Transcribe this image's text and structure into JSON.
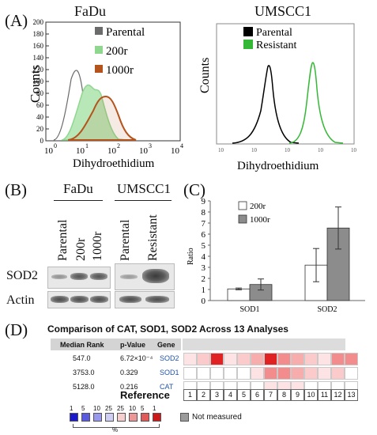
{
  "panels": {
    "a": "(A)",
    "b": "(B)",
    "c": "(C)",
    "d": "(D)"
  },
  "fadu_hist": {
    "title": "FaDu",
    "ylabel": "Counts",
    "xlabel": "Dihydroethidium",
    "yticks": [
      "0",
      "20",
      "40",
      "60",
      "80",
      "100",
      "120",
      "140",
      "160",
      "180",
      "200"
    ],
    "xticks": [
      "10",
      "10",
      "10",
      "10",
      "10"
    ],
    "xexps": [
      "0",
      "1",
      "2",
      "3",
      "4"
    ],
    "legend": [
      {
        "label": "Parental",
        "color": "#6b6b6b"
      },
      {
        "label": "200r",
        "color": "#8fd68f"
      },
      {
        "label": "1000r",
        "color": "#b5531d"
      }
    ]
  },
  "umscc_hist": {
    "title": "UMSCC1",
    "ylabel": "Counts",
    "xlabel": "Dihydroethidium",
    "legend": [
      {
        "label": "Parental",
        "color": "#000000"
      },
      {
        "label": "Resistant",
        "color": "#35b835"
      }
    ]
  },
  "western": {
    "group1": "FaDu",
    "group2": "UMSCC1",
    "lanes1": [
      "Parental",
      "200r",
      "1000r"
    ],
    "lanes2": [
      "Parental",
      "Resistant"
    ],
    "rows": [
      "SOD2",
      "Actin"
    ]
  },
  "chart_data": {
    "type": "bar",
    "categories": [
      "SOD1",
      "SOD2"
    ],
    "series": [
      {
        "name": "200r",
        "values": [
          1.05,
          3.2
        ],
        "errors": [
          0.08,
          1.5
        ],
        "color": "#ffffff"
      },
      {
        "name": "1000r",
        "values": [
          1.45,
          6.55
        ],
        "errors": [
          0.5,
          1.9
        ],
        "color": "#8c8c8c"
      }
    ],
    "ylabel": "Ratio",
    "yticks": [
      "0",
      "1",
      "2",
      "3",
      "4",
      "5",
      "6",
      "7",
      "8",
      "9"
    ],
    "ylim": [
      0,
      9
    ]
  },
  "oncomine": {
    "title": "Comparison of CAT, SOD1, SOD2 Across 13 Analyses",
    "headers": {
      "rank": "Median Rank",
      "pval": "p-Value",
      "gene": "Gene"
    },
    "rows": [
      {
        "rank": "547.0",
        "pval": "6.72×10⁻⁴",
        "gene": "SOD2",
        "cells": [
          1,
          2,
          6,
          1,
          2,
          3,
          6,
          4,
          3,
          2,
          1,
          4,
          4
        ]
      },
      {
        "rank": "3753.0",
        "pval": "0.329",
        "gene": "SOD1",
        "cells": [
          0,
          0,
          0,
          0,
          0,
          1,
          4,
          4,
          3,
          2,
          1,
          2,
          0
        ]
      },
      {
        "rank": "5128.0",
        "pval": "0.216",
        "gene": "CAT",
        "cells": [
          0,
          0,
          0,
          0,
          0,
          0,
          1,
          1,
          1,
          0,
          0,
          0,
          0
        ]
      }
    ],
    "reference_label": "Reference",
    "reference_numbers": [
      "1",
      "2",
      "3",
      "4",
      "5",
      "6",
      "7",
      "8",
      "9",
      "10",
      "11",
      "12",
      "13"
    ],
    "scale_top": [
      "1",
      "5",
      "10",
      "25",
      "25",
      "10",
      "5",
      "1"
    ],
    "scale_unit": "%",
    "not_measured": "Not measured",
    "heat_colors": [
      "#ffffff",
      "#fde3e3",
      "#fbcaca",
      "#f8adad",
      "#f38c8c",
      "#ee5c5c",
      "#e02222"
    ],
    "scale_colors": [
      "#1a1acc",
      "#5a5ae0",
      "#9898ec",
      "#cfcff6",
      "#f6cfcf",
      "#ec9898",
      "#e05a5a",
      "#cc1a1a"
    ]
  }
}
